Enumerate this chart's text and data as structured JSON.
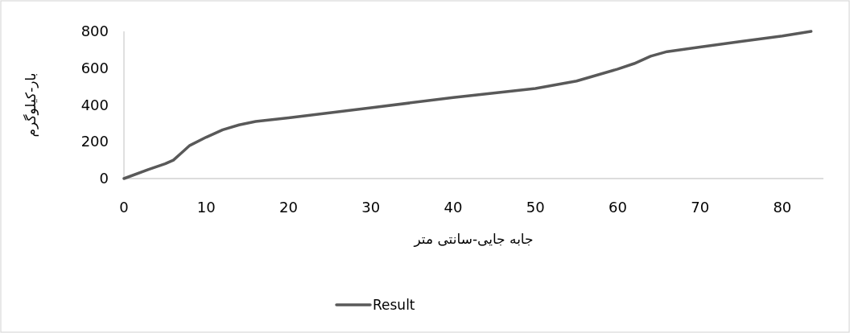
{
  "chart_data": {
    "type": "line",
    "xlabel": "جابه جایی-سانتی متر",
    "ylabel": "بار-کیلوگرم",
    "xlim": [
      0,
      85
    ],
    "ylim": [
      0,
      800
    ],
    "xticks": [
      0,
      10,
      20,
      30,
      40,
      50,
      60,
      70,
      80
    ],
    "yticks": [
      0,
      200,
      400,
      600,
      800
    ],
    "grid": false,
    "legend": "bottom",
    "marker": "none",
    "line_style": "solid",
    "series": [
      {
        "name": "Result",
        "color": "#595959",
        "x": [
          0,
          3,
          5,
          6,
          7,
          8,
          10,
          12,
          14,
          16,
          20,
          30,
          40,
          50,
          55,
          60,
          62,
          64,
          66,
          70,
          75,
          80,
          83.5
        ],
        "values": [
          0,
          50,
          80,
          100,
          140,
          180,
          225,
          265,
          292,
          310,
          330,
          385,
          440,
          490,
          530,
          595,
          625,
          665,
          690,
          715,
          745,
          775,
          800
        ]
      }
    ]
  }
}
